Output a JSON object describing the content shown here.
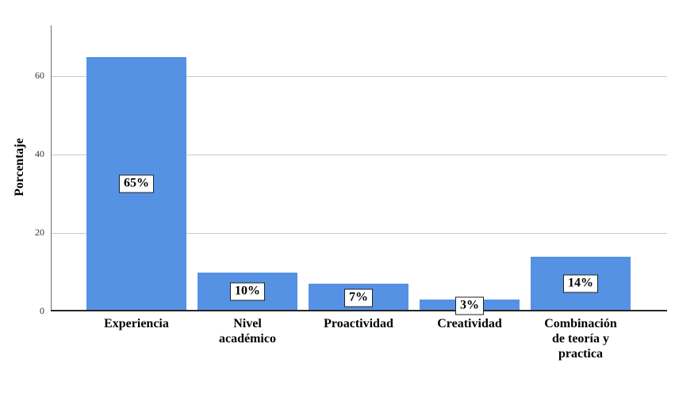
{
  "chart_data": {
    "type": "bar",
    "title": "",
    "xlabel": "",
    "ylabel": "Porcentaje",
    "categories": [
      "Experiencia",
      "Nivel\nacadémico",
      "Proactividad",
      "Creatividad",
      "Combinación\nde teoría y\npractica"
    ],
    "values": [
      65,
      10,
      7,
      3,
      14
    ],
    "value_labels": [
      "65%",
      "10%",
      "7%",
      "3%",
      "14%"
    ],
    "yticks": [
      0,
      20,
      40,
      60
    ],
    "ylim": [
      0,
      73
    ],
    "grid": true,
    "legend": "none",
    "colors": {
      "background": "#ffffff",
      "bar_fill": "#5592E3",
      "gridline": "#c9c9c9",
      "y_axis_line": "#6e6e6e",
      "x_axis_line": "#262626",
      "tick_label": "#333333",
      "category_label": "#000000",
      "value_label_text": "#000000",
      "value_label_bg": "#ffffff",
      "value_label_border": "#222222"
    }
  }
}
